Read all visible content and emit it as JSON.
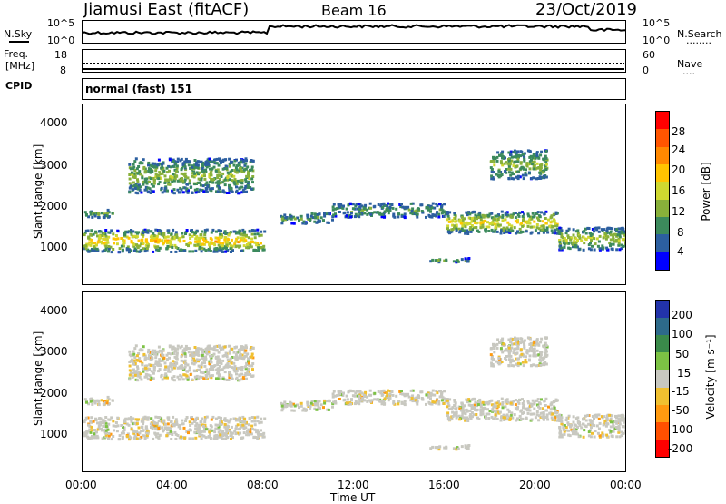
{
  "header": {
    "station": "Jiamusi East (fitACF)",
    "beam": "Beam 16",
    "date": "23/Oct/2019"
  },
  "noise_panel": {
    "left_label": "N.Sky",
    "right_label": "N.Search",
    "right_line": "........",
    "left_ticks": [
      "10^5",
      "10^0"
    ],
    "right_ticks": [
      "10^5",
      "10^0"
    ]
  },
  "freq_panel": {
    "left_label_line1": "Freq.",
    "left_label_line2": "[MHz]",
    "right_label": "Nave",
    "right_line": "....",
    "left_ticks": [
      "18",
      "8"
    ],
    "right_ticks": [
      "60",
      "0"
    ]
  },
  "cpid": {
    "label": "CPID",
    "text": "normal (fast) 151"
  },
  "power_panel": {
    "ylabel": "Slant Range [km]",
    "yticks": [
      "4000",
      "3000",
      "2000",
      "1000"
    ],
    "colorbar_label": "Power [dB]",
    "colorbar_ticks": [
      "28",
      "24",
      "20",
      "16",
      "12",
      "8",
      "4"
    ],
    "colors": [
      "#ff0000",
      "#ff5500",
      "#ff8800",
      "#ffc400",
      "#cfd830",
      "#88b03a",
      "#3c8a5c",
      "#2c5fa0",
      "#0000ff"
    ]
  },
  "velocity_panel": {
    "ylabel": "Slant Range [km]",
    "yticks": [
      "4000",
      "3000",
      "2000",
      "1000"
    ],
    "colorbar_label": "Velocity [m s⁻¹]",
    "colorbar_ticks": [
      "200",
      "100",
      "50",
      "15",
      "-15",
      "-50",
      "-100",
      "-200"
    ],
    "colors": [
      "#2233aa",
      "#2d6a8a",
      "#3a8a4a",
      "#7cc244",
      "#c8c8c0",
      "#f0c030",
      "#ff9a10",
      "#ff5000",
      "#ff0000"
    ]
  },
  "x_axis": {
    "ticks": [
      "00:00",
      "04:00",
      "08:00",
      "12:00",
      "16:00",
      "20:00",
      "00:00"
    ],
    "label": "Time UT"
  },
  "chart_data": {
    "type": "heatmap",
    "x_range_hours": [
      0,
      24
    ],
    "y_range_km": [
      180,
      4600
    ],
    "scatter_regions": [
      {
        "t0": 0.0,
        "t1": 8.0,
        "r0": 1000,
        "r1": 1550,
        "power_db": 18
      },
      {
        "t0": 0.0,
        "t1": 1.3,
        "r0": 1850,
        "r1": 2050,
        "power_db": 8
      },
      {
        "t0": 2.0,
        "t1": 7.5,
        "r0": 2450,
        "r1": 3300,
        "power_db": 10
      },
      {
        "t0": 8.7,
        "t1": 11.0,
        "r0": 1700,
        "r1": 1950,
        "power_db": 6
      },
      {
        "t0": 11.0,
        "t1": 16.0,
        "r0": 1850,
        "r1": 2200,
        "power_db": 6
      },
      {
        "t0": 16.0,
        "t1": 21.0,
        "r0": 1450,
        "r1": 2000,
        "power_db": 16
      },
      {
        "t0": 18.0,
        "t1": 20.5,
        "r0": 2800,
        "r1": 3500,
        "power_db": 10
      },
      {
        "t0": 21.0,
        "t1": 24.0,
        "r0": 1050,
        "r1": 1600,
        "power_db": 12
      },
      {
        "t0": 15.3,
        "t1": 17.3,
        "r0": 750,
        "r1": 850,
        "power_db": 6
      }
    ]
  }
}
